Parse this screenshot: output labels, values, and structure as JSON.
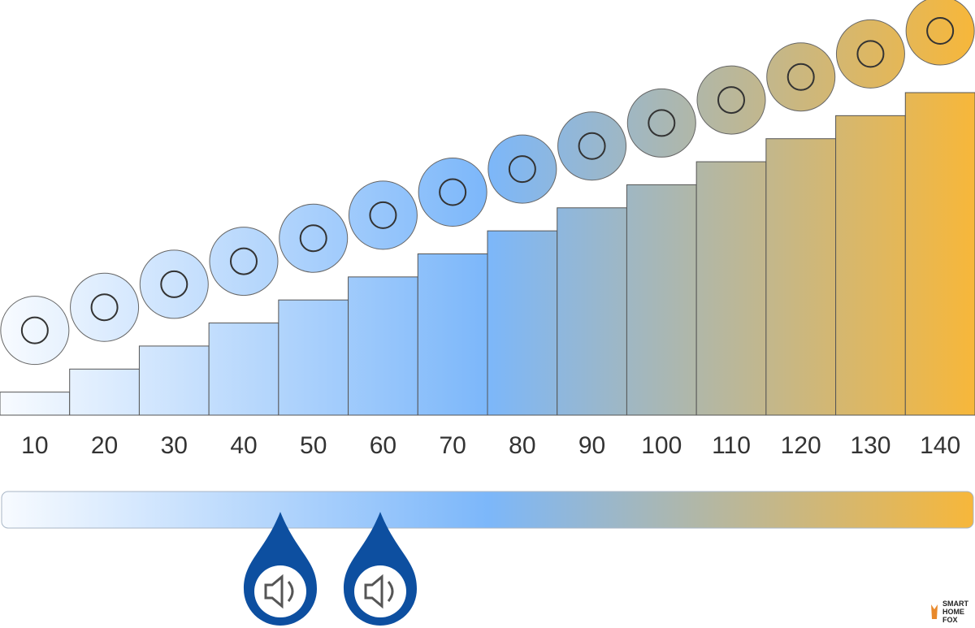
{
  "chart_data": {
    "type": "bar",
    "values": [
      10,
      20,
      30,
      40,
      50,
      60,
      70,
      80,
      90,
      100,
      110,
      120,
      130,
      140
    ],
    "colors": [
      "#f8fbff",
      "#7cb7fa",
      "#f7b73a"
    ]
  },
  "logo": [
    "SMART",
    "HOME",
    "FOX"
  ]
}
